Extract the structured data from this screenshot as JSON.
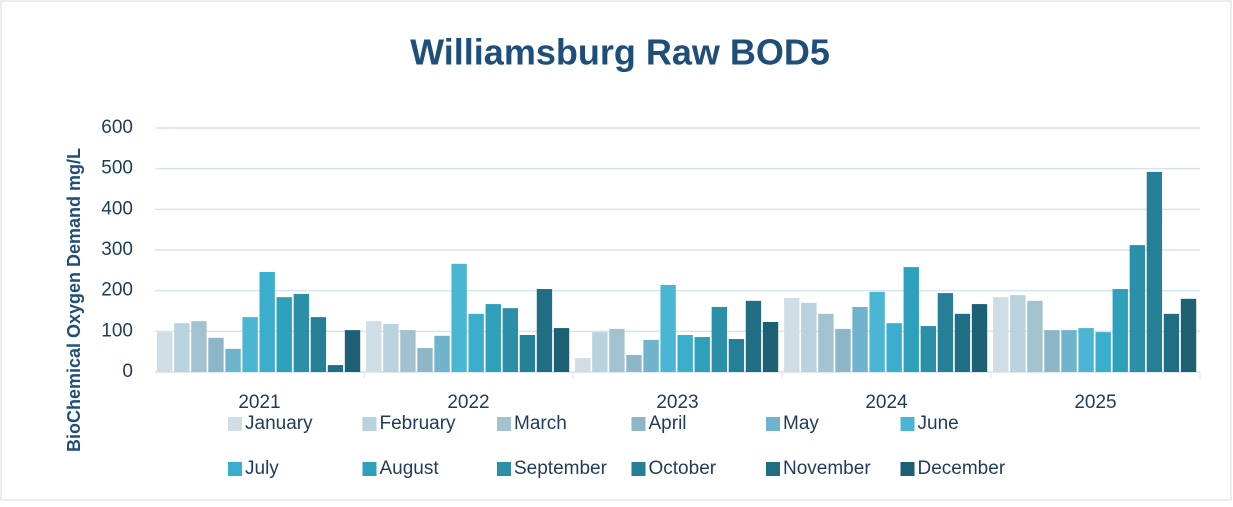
{
  "chart_data": {
    "type": "bar",
    "title": "Williamsburg Raw BOD5",
    "y_label": "BioChemical Oxygen Demand mg/L",
    "categories": [
      "2021",
      "2022",
      "2023",
      "2024",
      "2025"
    ],
    "ylim": [
      0,
      600
    ],
    "yticks": [
      0,
      100,
      200,
      300,
      400,
      500,
      600
    ],
    "grid": true,
    "series": [
      {
        "name": "January",
        "color": "#cfdde4",
        "values": [
          98,
          125,
          34,
          182,
          184
        ]
      },
      {
        "name": "February",
        "color": "#b8d3de",
        "values": [
          120,
          118,
          98,
          170,
          189
        ]
      },
      {
        "name": "March",
        "color": "#a2c2cf",
        "values": [
          125,
          103,
          106,
          143,
          175
        ]
      },
      {
        "name": "April",
        "color": "#8db7c8",
        "values": [
          84,
          59,
          42,
          106,
          103
        ]
      },
      {
        "name": "May",
        "color": "#6fb3cc",
        "values": [
          57,
          89,
          79,
          160,
          103
        ]
      },
      {
        "name": "June",
        "color": "#4bb6d4",
        "values": [
          135,
          266,
          214,
          197,
          108
        ]
      },
      {
        "name": "July",
        "color": "#3aaecc",
        "values": [
          246,
          143,
          91,
          120,
          98
        ]
      },
      {
        "name": "August",
        "color": "#2fa0bb",
        "values": [
          184,
          167,
          86,
          258,
          204
        ]
      },
      {
        "name": "September",
        "color": "#2b8fa8",
        "values": [
          192,
          157,
          160,
          113,
          312
        ]
      },
      {
        "name": "October",
        "color": "#257f96",
        "values": [
          135,
          91,
          81,
          194,
          492
        ]
      },
      {
        "name": "November",
        "color": "#216e84",
        "values": [
          17,
          204,
          175,
          143,
          143
        ]
      },
      {
        "name": "December",
        "color": "#1d5f73",
        "values": [
          103,
          108,
          123,
          167,
          180
        ]
      }
    ]
  }
}
